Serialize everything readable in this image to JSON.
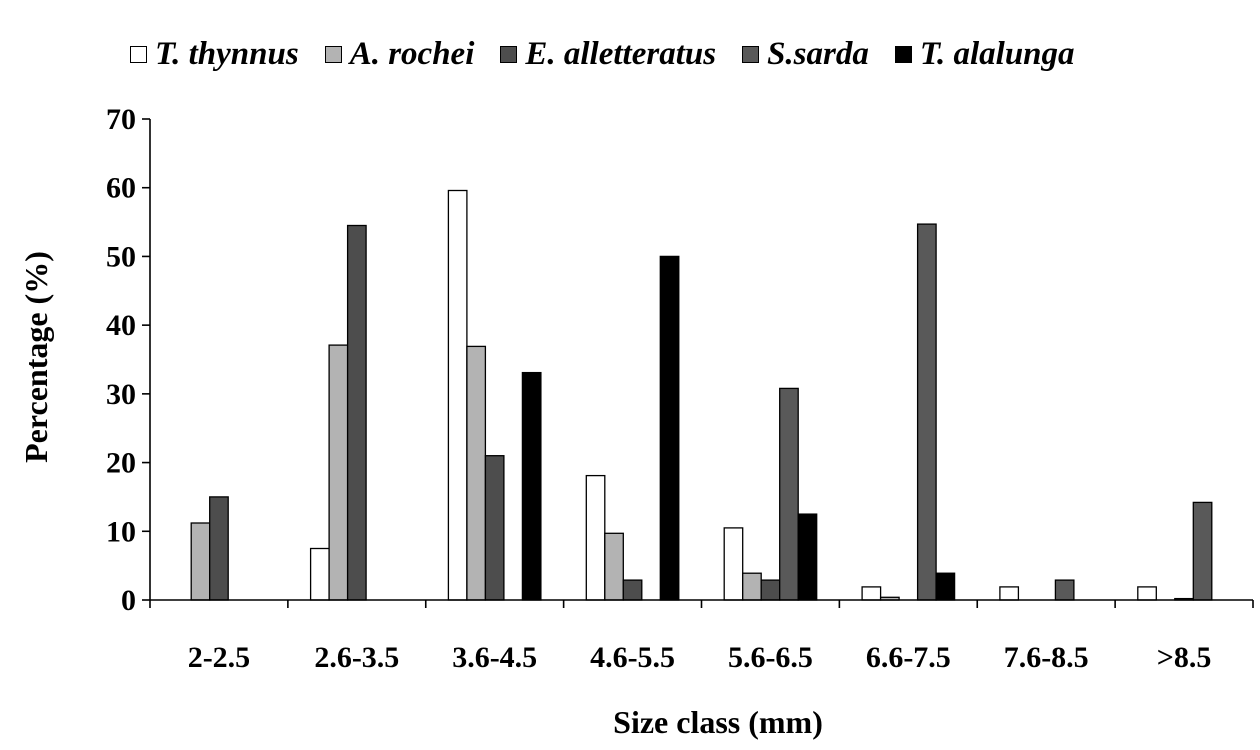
{
  "chart_data": {
    "type": "bar",
    "xlabel": "Size class (mm)",
    "ylabel": "Percentage (%)",
    "ylim": [
      0,
      70
    ],
    "yticks": [
      0,
      10,
      20,
      30,
      40,
      50,
      60,
      70
    ],
    "grid": false,
    "legend_position": "top",
    "categories": [
      "2-2.5",
      "2.6-3.5",
      "3.6-4.5",
      "4.6-5.5",
      "5.6-6.5",
      "6.6-7.5",
      "7.6-8.5",
      ">8.5"
    ],
    "series": [
      {
        "name": "T. thynnus",
        "color": "#ffffff",
        "values": [
          0,
          7.5,
          59.6,
          18.1,
          10.5,
          1.9,
          1.9,
          1.9
        ]
      },
      {
        "name": "A. rochei",
        "color": "#b3b3b3",
        "values": [
          11.2,
          37.1,
          36.9,
          9.7,
          3.9,
          0.4,
          0,
          0
        ]
      },
      {
        "name": "E. alletteratus",
        "color": "#4d4d4d",
        "values": [
          15.0,
          54.5,
          21.0,
          2.9,
          2.9,
          0,
          0,
          0.2
        ]
      },
      {
        "name": "S.sarda",
        "color": "#595959",
        "values": [
          0,
          0,
          0,
          0,
          30.8,
          54.7,
          2.9,
          14.2
        ]
      },
      {
        "name": "T. alalunga",
        "color": "#000000",
        "values": [
          0,
          0,
          33.1,
          50.0,
          12.5,
          3.9,
          0,
          0
        ]
      }
    ]
  }
}
